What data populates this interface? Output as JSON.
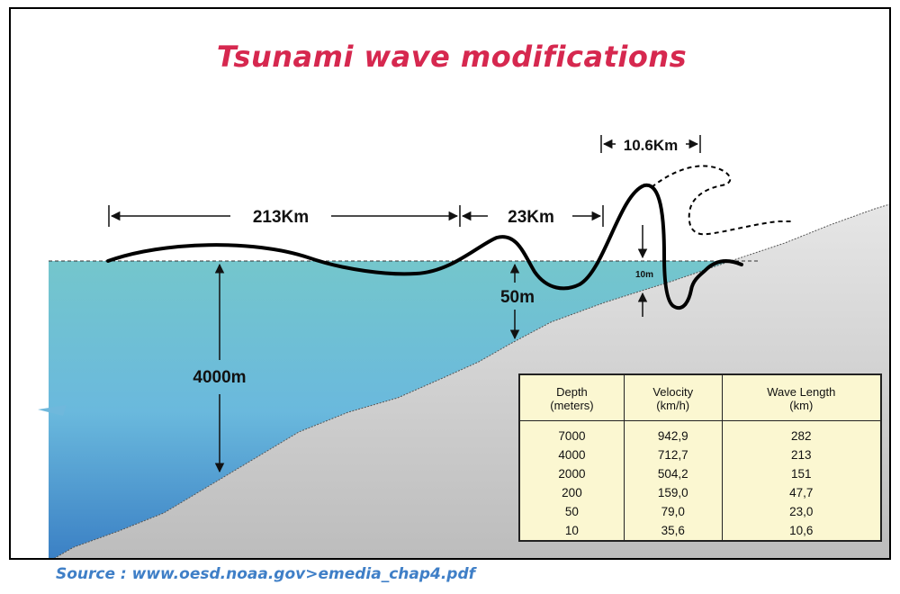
{
  "title": "Tsunami wave modifications",
  "labels": {
    "width_213": "213Km",
    "width_23": "23Km",
    "width_10_6": "10.6Km",
    "depth_4000": "4000m",
    "depth_50": "50m",
    "height_10": "10m"
  },
  "table": {
    "headers": [
      {
        "line1": "Depth",
        "line2": "(meters)"
      },
      {
        "line1": "Velocity",
        "line2": "(km/h)"
      },
      {
        "line1": "Wave Length",
        "line2": "(km)"
      }
    ],
    "rows": [
      [
        "7000",
        "942,9",
        "282"
      ],
      [
        "4000",
        "712,7",
        "213"
      ],
      [
        "2000",
        "504,2",
        "151"
      ],
      [
        "200",
        "159,0",
        "47,7"
      ],
      [
        "50",
        "79,0",
        "23,0"
      ],
      [
        "10",
        "35,6",
        "10,6"
      ]
    ]
  },
  "source": "Source : www.oesd.noaa.gov>emedia_chap4.pdf",
  "colors": {
    "title": "#d6284f",
    "ocean_top": "#74c6cc",
    "ocean_bottom": "#3a7fc4",
    "seabed": "#c9c9c9",
    "table_bg": "#fbf7d1",
    "source": "#3f7fc7"
  }
}
